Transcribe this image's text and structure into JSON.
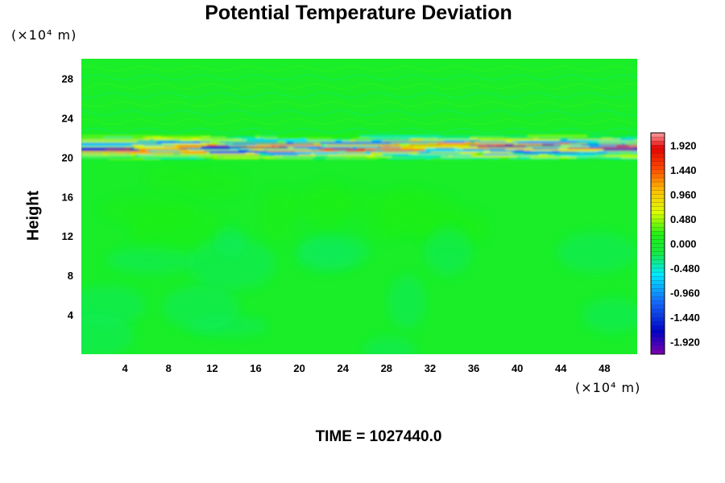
{
  "chart_data": {
    "type": "heatmap",
    "title": "Potential Temperature Deviation",
    "ylabel": "Height",
    "xlabel": "",
    "x_unit": "(×10⁴ m)",
    "y_unit": "(×10⁴ m)",
    "footer": "TIME = 1027440.0",
    "xlim": [
      0,
      51
    ],
    "ylim": [
      0,
      30
    ],
    "x_ticks": [
      4,
      8,
      12,
      16,
      20,
      24,
      28,
      32,
      36,
      40,
      44,
      48
    ],
    "y_ticks": [
      4,
      8,
      12,
      16,
      20,
      24,
      28
    ],
    "colorbar": {
      "min": -2.16,
      "max": 2.16,
      "tick_values": [
        1.92,
        1.44,
        0.96,
        0.48,
        0.0,
        -0.48,
        -0.96,
        -1.44,
        -1.92
      ],
      "tick_labels": [
        "1.920",
        "1.440",
        "0.960",
        "0.480",
        "0.000",
        "-0.480",
        "-0.960",
        "-1.440",
        "-1.920"
      ]
    },
    "field_features": [
      {
        "feature": "background",
        "value": 0.0
      },
      {
        "feature": "strong-oscillation-band",
        "y_range": [
          19.8,
          22.2
        ],
        "value_range": [
          -1.92,
          1.92
        ]
      },
      {
        "feature": "weak-warm-patches",
        "y_range": [
          12,
          18
        ],
        "value": 0.15
      },
      {
        "feature": "weak-cool-patches",
        "y_range": [
          0,
          12
        ],
        "value": -0.25
      }
    ]
  }
}
